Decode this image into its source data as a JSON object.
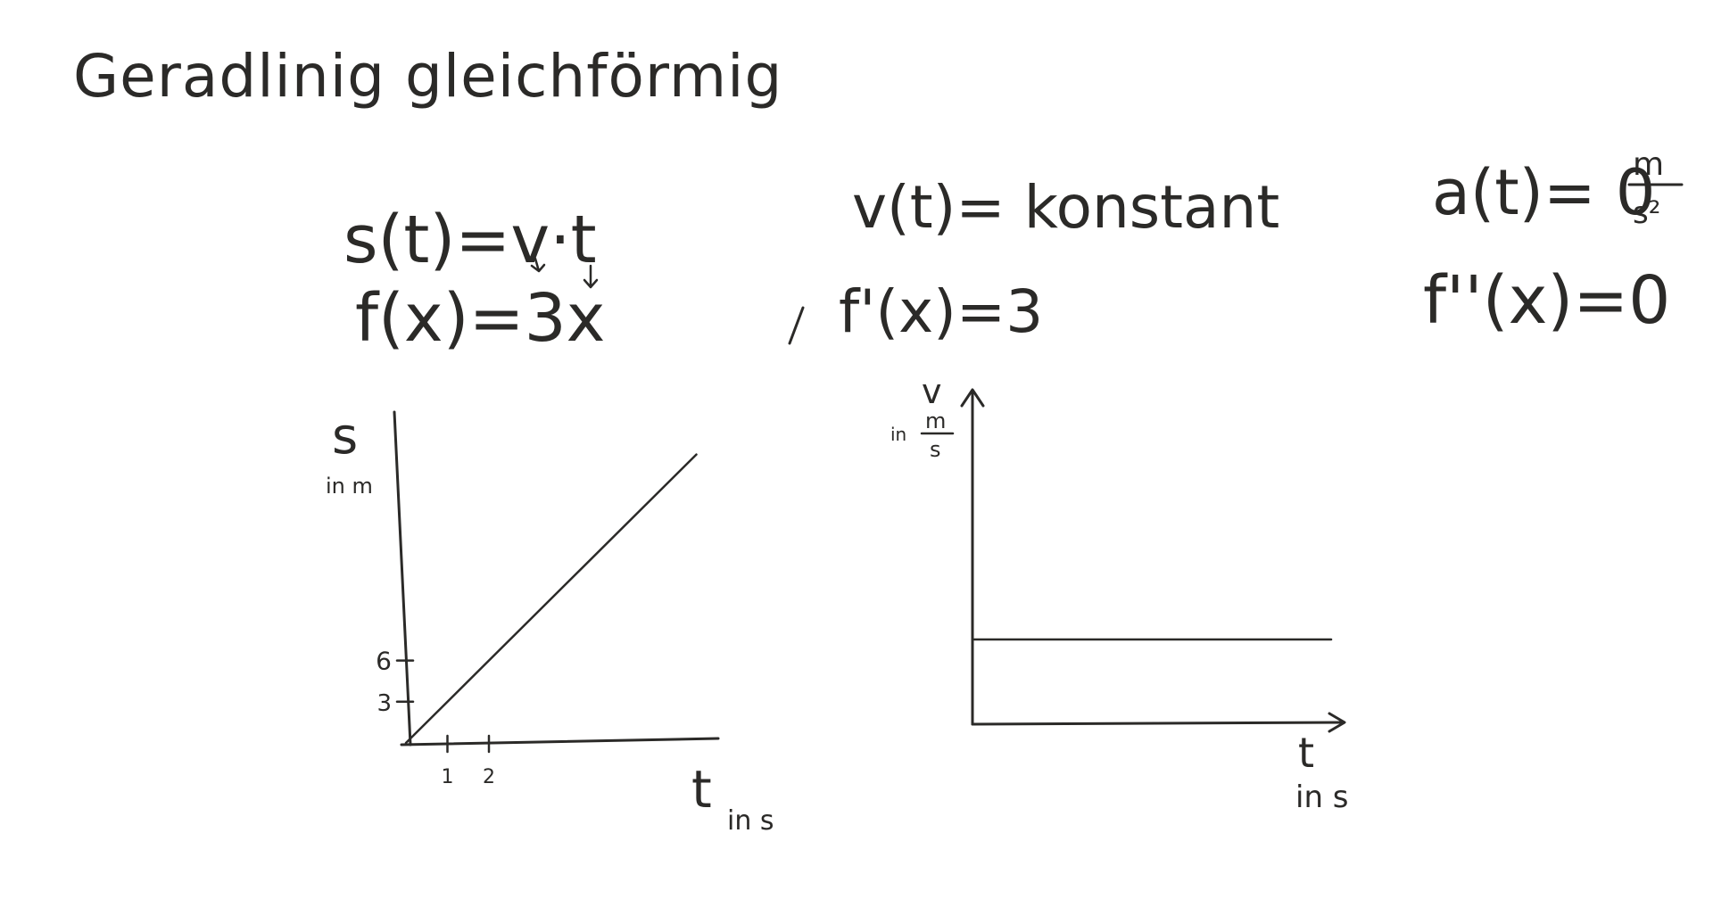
{
  "title": "Geradlinig gleichförmig",
  "formulas": {
    "position": "s(t)=v·t",
    "position_function": "f(x)=3x",
    "velocity": "v(t)= konstant",
    "velocity_function": "f'(x)=3",
    "acceleration": "a(t)= 0",
    "acceleration_unit_num": "m",
    "acceleration_unit_den": "s²",
    "acceleration_function": "f''(x)=0"
  },
  "chart_data": [
    {
      "type": "line",
      "ylabel": "s",
      "ylabel_unit": "in m",
      "xlabel": "t",
      "xlabel_unit": "in s",
      "x_ticks": [
        "1",
        "2"
      ],
      "y_ticks": [
        "3",
        "6"
      ],
      "series": [
        {
          "x": [
            0,
            7
          ],
          "y": [
            0,
            21
          ]
        }
      ]
    },
    {
      "type": "line",
      "ylabel": "v",
      "ylabel_unit_prefix": "in",
      "ylabel_unit_num": "m",
      "ylabel_unit_den": "s",
      "xlabel": "t",
      "xlabel_unit": "in s",
      "series": [
        {
          "x": [
            0,
            8
          ],
          "y": [
            3,
            3
          ]
        }
      ]
    }
  ]
}
